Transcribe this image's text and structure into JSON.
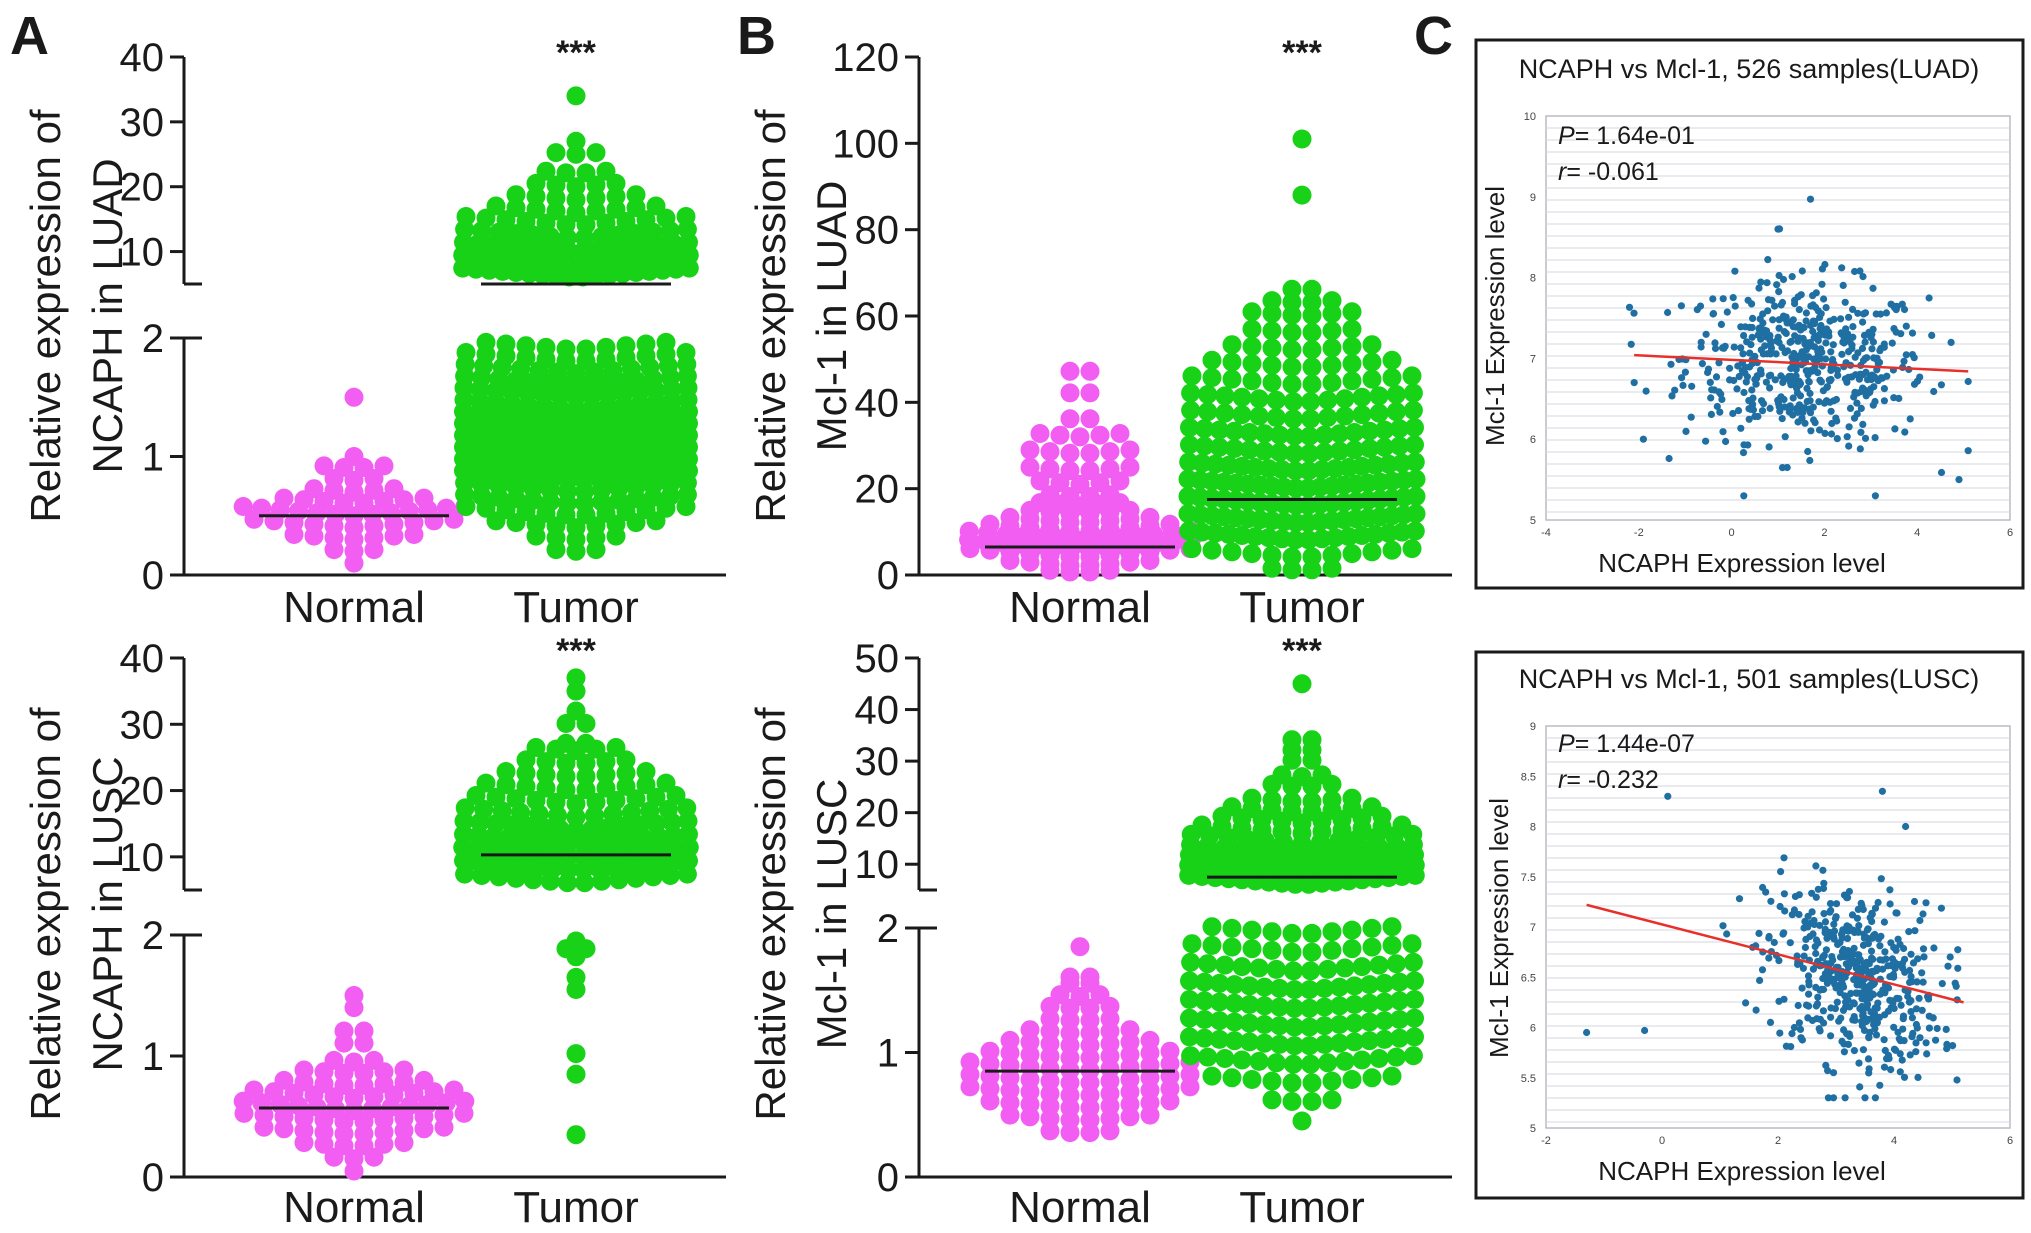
{
  "figure": {
    "panel_labels": [
      "A",
      "B",
      "C"
    ]
  },
  "colors": {
    "normal": "#f25ef2",
    "tumor": "#17d217",
    "scatter": "#1f6fa3",
    "fit_line": "#e8302a",
    "axis": "#1a1a1a"
  },
  "chart_data": [
    {
      "id": "A-LUAD",
      "panel": "A",
      "type": "scatter",
      "ylabel_line1": "Relative expression of",
      "ylabel_line2": "NCAPH in LUAD",
      "categories": [
        "Normal",
        "Tumor"
      ],
      "significance": "***",
      "broken_axis": true,
      "lower_ticks": [
        "0",
        "1",
        "2"
      ],
      "upper_ticks": [
        "10",
        "20",
        "30",
        "40"
      ],
      "lower_range": [
        0,
        2
      ],
      "upper_range": [
        5,
        40
      ],
      "medians": [
        0.5,
        5.0
      ],
      "groups": [
        {
          "name": "Normal",
          "rows": [
            [
              0.1,
              1
            ],
            [
              0.2,
              3
            ],
            [
              0.3,
              7
            ],
            [
              0.4,
              11
            ],
            [
              0.5,
              13
            ],
            [
              0.6,
              8
            ],
            [
              0.7,
              5
            ],
            [
              0.8,
              3
            ],
            [
              0.9,
              4
            ],
            [
              1.0,
              1
            ],
            [
              1.5,
              1
            ]
          ]
        },
        {
          "name": "Tumor",
          "rows": [
            [
              0.2,
              3
            ],
            [
              0.3,
              5
            ],
            [
              0.4,
              9
            ],
            [
              0.5,
              12
            ],
            [
              0.6,
              14
            ],
            [
              0.7,
              14
            ],
            [
              0.8,
              16
            ],
            [
              0.9,
              16
            ],
            [
              1.0,
              16
            ],
            [
              1.1,
              16
            ],
            [
              1.2,
              16
            ],
            [
              1.3,
              16
            ],
            [
              1.4,
              15
            ],
            [
              1.5,
              15
            ],
            [
              1.6,
              14
            ],
            [
              1.7,
              13
            ],
            [
              1.8,
              12
            ],
            [
              1.9,
              10
            ],
            [
              6,
              18
            ],
            [
              8,
              18
            ],
            [
              10,
              16
            ],
            [
              12,
              14
            ],
            [
              14,
              12
            ],
            [
              16,
              9
            ],
            [
              18,
              7
            ],
            [
              20,
              5
            ],
            [
              22,
              4
            ],
            [
              25,
              3
            ],
            [
              27,
              1
            ],
            [
              34,
              1
            ]
          ]
        }
      ]
    },
    {
      "id": "A-LUSC",
      "panel": "A",
      "type": "scatter",
      "ylabel_line1": "Relative expression of",
      "ylabel_line2": "NCAPH in LUSC",
      "categories": [
        "Normal",
        "Tumor"
      ],
      "significance": "***",
      "broken_axis": true,
      "lower_ticks": [
        "0",
        "1",
        "2"
      ],
      "upper_ticks": [
        "10",
        "20",
        "30",
        "40"
      ],
      "lower_range": [
        0,
        2
      ],
      "upper_range": [
        5,
        40
      ],
      "medians": [
        0.57,
        10.3
      ],
      "groups": [
        {
          "name": "Normal",
          "rows": [
            [
              0.05,
              1
            ],
            [
              0.15,
              3
            ],
            [
              0.25,
              6
            ],
            [
              0.35,
              10
            ],
            [
              0.45,
              12
            ],
            [
              0.55,
              13
            ],
            [
              0.65,
              11
            ],
            [
              0.75,
              8
            ],
            [
              0.85,
              6
            ],
            [
              0.95,
              3
            ],
            [
              1.1,
              2
            ],
            [
              1.2,
              2
            ],
            [
              1.4,
              1
            ],
            [
              1.5,
              1
            ]
          ]
        },
        {
          "name": "Tumor",
          "rows": [
            [
              0.35,
              1
            ],
            [
              0.85,
              1
            ],
            [
              1.02,
              1
            ],
            [
              1.55,
              1
            ],
            [
              1.65,
              1
            ],
            [
              1.82,
              1
            ],
            [
              1.88,
              2
            ],
            [
              1.95,
              1
            ],
            [
              6,
              14
            ],
            [
              8,
              16
            ],
            [
              10,
              18
            ],
            [
              12,
              16
            ],
            [
              14,
              15
            ],
            [
              16,
              13
            ],
            [
              18,
              11
            ],
            [
              20,
              10
            ],
            [
              22,
              8
            ],
            [
              24,
              6
            ],
            [
              26,
              5
            ],
            [
              27,
              2
            ],
            [
              30,
              2
            ],
            [
              32,
              1
            ],
            [
              35,
              1
            ],
            [
              37,
              1
            ]
          ]
        }
      ]
    },
    {
      "id": "B-LUAD",
      "panel": "B",
      "type": "scatter",
      "ylabel_line1": "Relative expression of",
      "ylabel_line2": "Mcl-1 in LUAD",
      "categories": [
        "Normal",
        "Tumor"
      ],
      "significance": "***",
      "broken_axis": false,
      "ticks": [
        "0",
        "20",
        "40",
        "60",
        "80",
        "100",
        "120"
      ],
      "range": [
        0,
        120
      ],
      "medians": [
        6.5,
        17.5
      ],
      "groups": [
        {
          "name": "Normal",
          "rows": [
            [
              0.5,
              4
            ],
            [
              2,
              8
            ],
            [
              4,
              12
            ],
            [
              6,
              14
            ],
            [
              8,
              13
            ],
            [
              10,
              10
            ],
            [
              12,
              8
            ],
            [
              14,
              6
            ],
            [
              16,
              5
            ],
            [
              18,
              4
            ],
            [
              21,
              5
            ],
            [
              24,
              6
            ],
            [
              28,
              6
            ],
            [
              32,
              5
            ],
            [
              36,
              2
            ],
            [
              42,
              2
            ],
            [
              47,
              2
            ]
          ]
        },
        {
          "name": "Tumor",
          "rows": [
            [
              1,
              4
            ],
            [
              4,
              12
            ],
            [
              8,
              18
            ],
            [
              12,
              20
            ],
            [
              16,
              20
            ],
            [
              20,
              20
            ],
            [
              24,
              18
            ],
            [
              28,
              16
            ],
            [
              32,
              16
            ],
            [
              36,
              14
            ],
            [
              40,
              14
            ],
            [
              44,
              12
            ],
            [
              48,
              10
            ],
            [
              52,
              8
            ],
            [
              56,
              6
            ],
            [
              60,
              6
            ],
            [
              63,
              4
            ],
            [
              66,
              2
            ],
            [
              88,
              1
            ],
            [
              101,
              1
            ]
          ]
        }
      ]
    },
    {
      "id": "B-LUSC",
      "panel": "B",
      "type": "scatter",
      "ylabel_line1": "Relative expression of",
      "ylabel_line2": "Mcl-1 in LUSC",
      "categories": [
        "Normal",
        "Tumor"
      ],
      "significance": "***",
      "broken_axis": true,
      "lower_ticks": [
        "0",
        "1",
        "2"
      ],
      "upper_ticks": [
        "10",
        "20",
        "30",
        "40",
        "50"
      ],
      "lower_range": [
        0,
        2
      ],
      "upper_range": [
        5,
        50
      ],
      "medians": [
        0.85,
        7.5
      ],
      "groups": [
        {
          "name": "Normal",
          "rows": [
            [
              0.35,
              4
            ],
            [
              0.45,
              8
            ],
            [
              0.55,
              10
            ],
            [
              0.65,
              12
            ],
            [
              0.75,
              12
            ],
            [
              0.85,
              12
            ],
            [
              0.95,
              10
            ],
            [
              1.05,
              8
            ],
            [
              1.15,
              6
            ],
            [
              1.25,
              4
            ],
            [
              1.35,
              4
            ],
            [
              1.45,
              3
            ],
            [
              1.55,
              2
            ],
            [
              1.6,
              2
            ],
            [
              1.85,
              1
            ]
          ]
        },
        {
          "name": "Tumor",
          "rows": [
            [
              0.45,
              1
            ],
            [
              0.6,
              4
            ],
            [
              0.75,
              10
            ],
            [
              0.9,
              14
            ],
            [
              1.05,
              16
            ],
            [
              1.2,
              16
            ],
            [
              1.35,
              16
            ],
            [
              1.5,
              16
            ],
            [
              1.65,
              14
            ],
            [
              1.8,
              12
            ],
            [
              1.95,
              10
            ],
            [
              6,
              18
            ],
            [
              8,
              18
            ],
            [
              10,
              16
            ],
            [
              12,
              14
            ],
            [
              14,
              13
            ],
            [
              16,
              11
            ],
            [
              18,
              9
            ],
            [
              20,
              8
            ],
            [
              22,
              6
            ],
            [
              25,
              4
            ],
            [
              27,
              3
            ],
            [
              30,
              2
            ],
            [
              32,
              2
            ],
            [
              34,
              2
            ],
            [
              45,
              1
            ]
          ]
        }
      ]
    },
    {
      "id": "C-LUAD",
      "panel": "C",
      "type": "scatter",
      "title": "NCAPH vs Mcl-1, 526 samples(LUAD)",
      "xlabel": "NCAPH Expression level",
      "ylabel": "Mcl-1 Expression level",
      "p_prefix": "P",
      "p_value": "= 1.64e-01",
      "r_prefix": "r",
      "r_value": "= -0.061",
      "xlim": [
        -4,
        6
      ],
      "ylim": [
        5,
        10
      ],
      "x_ticks": [
        "-4",
        "-2",
        "0",
        "2",
        "4",
        "6"
      ],
      "y_ticks": [
        "5",
        "6",
        "7",
        "8",
        "9",
        "10"
      ],
      "n_samples": 526,
      "x_mean": 1.6,
      "x_sd": 1.3,
      "y_mean": 6.95,
      "y_sd": 0.5,
      "fit_line": {
        "x": [
          -2.1,
          5.1
        ],
        "y": [
          7.04,
          6.84
        ]
      },
      "outliers": [
        [
          1.7,
          8.97
        ],
        [
          1.0,
          8.6
        ],
        [
          3.1,
          5.3
        ],
        [
          4.9,
          5.5
        ],
        [
          -2.1,
          6.7
        ],
        [
          -1.9,
          6.0
        ]
      ]
    },
    {
      "id": "C-LUSC",
      "panel": "C",
      "type": "scatter",
      "title": "NCAPH vs Mcl-1, 501 samples(LUSC)",
      "xlabel": "NCAPH Expression level",
      "ylabel": "Mcl-1 Expression level",
      "p_prefix": "P",
      "p_value": "= 1.44e-07",
      "r_prefix": "r",
      "r_value": "= -0.232",
      "xlim": [
        -2,
        6
      ],
      "ylim": [
        5,
        9
      ],
      "x_ticks": [
        "-2",
        "0",
        "2",
        "4",
        "6"
      ],
      "y_ticks": [
        "5",
        "5.5",
        "6",
        "6.5",
        "7",
        "7.5",
        "8",
        "8.5",
        "9"
      ],
      "n_samples": 501,
      "x_mean": 3.3,
      "x_sd": 0.75,
      "y_mean": 6.5,
      "y_sd": 0.45,
      "fit_line": {
        "x": [
          -1.3,
          5.2
        ],
        "y": [
          7.22,
          6.25
        ]
      },
      "outliers": [
        [
          -1.3,
          5.95
        ],
        [
          -0.3,
          5.97
        ],
        [
          0.1,
          8.3
        ],
        [
          3.8,
          8.35
        ],
        [
          4.2,
          8.0
        ],
        [
          3.5,
          5.3
        ]
      ]
    }
  ]
}
